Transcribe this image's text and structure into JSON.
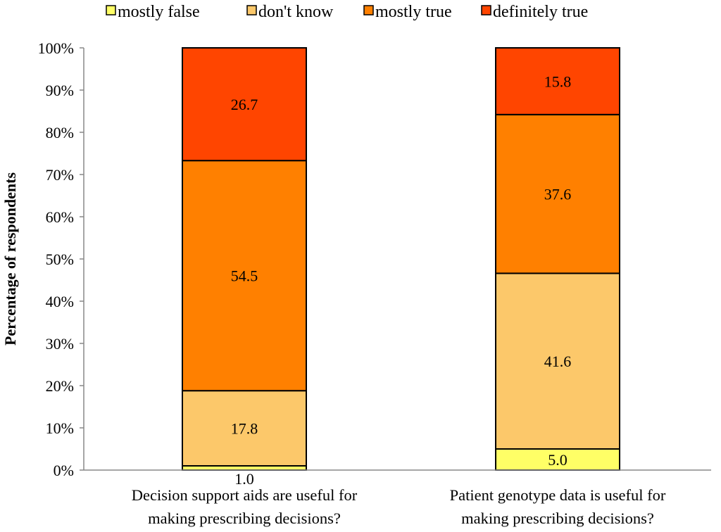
{
  "chart_data": {
    "type": "bar",
    "stacked": true,
    "title": "",
    "xlabel": "",
    "ylabel": "Percentage of respondents",
    "ylim": [
      0,
      100
    ],
    "yticks": [
      "0%",
      "10%",
      "20%",
      "30%",
      "40%",
      "50%",
      "60%",
      "70%",
      "80%",
      "90%",
      "100%"
    ],
    "legend_position": "top",
    "categories": [
      [
        "Decision support aids are useful for",
        "making prescribing decisions?"
      ],
      [
        "Patient genotype data is useful for",
        "making prescribing decisions?"
      ]
    ],
    "series": [
      {
        "name": "mostly false",
        "color": "#ffff66",
        "values": [
          1.0,
          5.0
        ]
      },
      {
        "name": "don't know",
        "color": "#fcc86a",
        "values": [
          17.8,
          41.6
        ]
      },
      {
        "name": "mostly true",
        "color": "#ff8000",
        "values": [
          54.5,
          37.6
        ]
      },
      {
        "name": "definitely true",
        "color": "#ff4500",
        "values": [
          26.7,
          15.8
        ]
      }
    ],
    "data_labels": [
      [
        "1.0",
        "17.8",
        "54.5",
        "26.7"
      ],
      [
        "5.0",
        "41.6",
        "37.6",
        "15.8"
      ]
    ]
  }
}
